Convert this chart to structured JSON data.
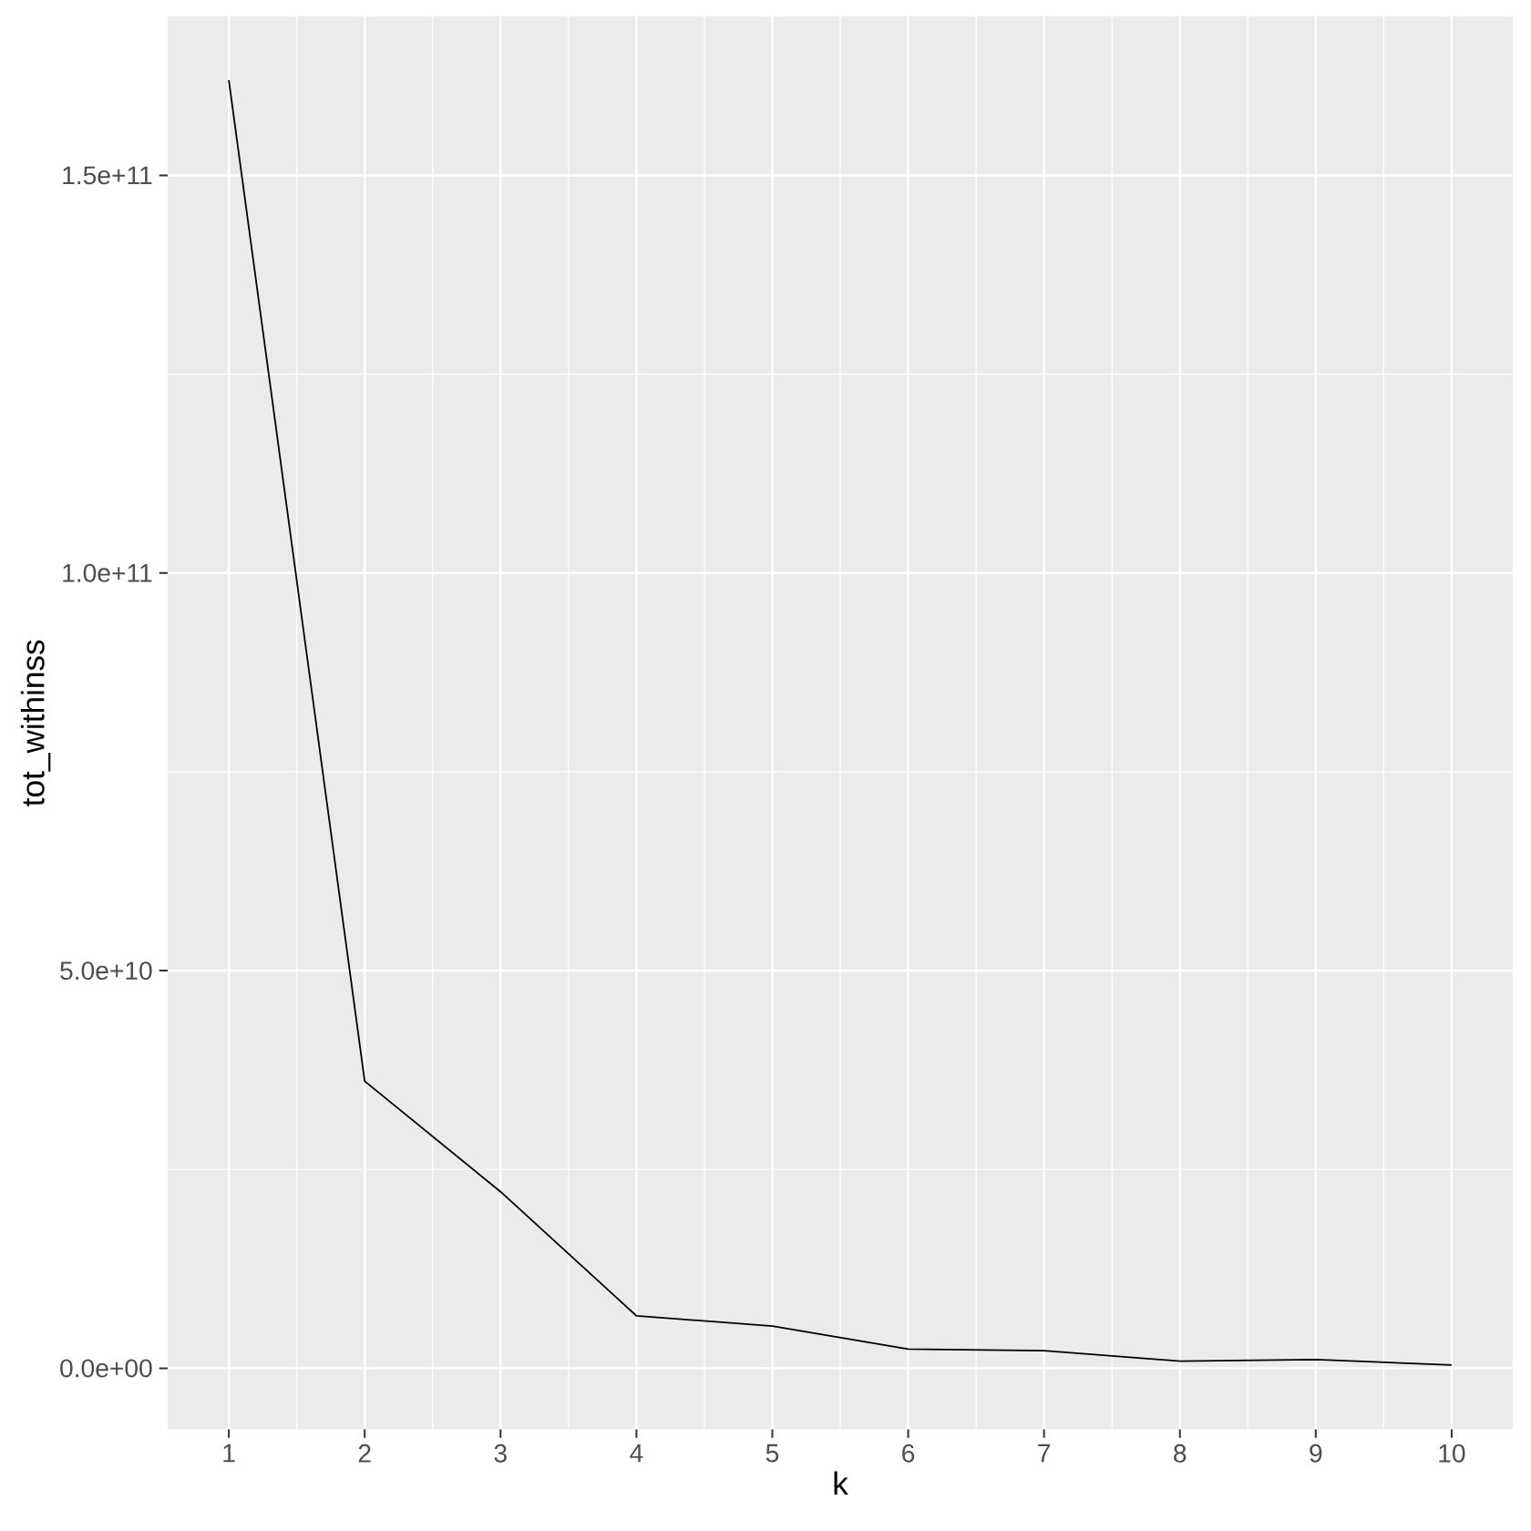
{
  "chart_data": {
    "type": "line",
    "xlabel": "k",
    "ylabel": "tot_withinss",
    "x": [
      1,
      2,
      3,
      4,
      5,
      6,
      7,
      8,
      9,
      10
    ],
    "series": [
      {
        "color": "#000000",
        "values": [
          162000000000.0,
          36100000000.0,
          22200000000.0,
          6600000000.0,
          5300000000.0,
          2400000000.0,
          2200000000.0,
          900000000.0,
          1100000000.0,
          400000000.0
        ]
      }
    ],
    "xlim": [
      0.55,
      10.45
    ],
    "ylim": [
      -7700000000.0,
      170000000000.0
    ],
    "xticks": [
      1,
      2,
      3,
      4,
      5,
      6,
      7,
      8,
      9,
      10
    ],
    "yticks": [
      {
        "value": 0,
        "label": "0.0e+00"
      },
      {
        "value": 50000000000.0,
        "label": "5.0e+10"
      },
      {
        "value": 100000000000.0,
        "label": "1.0e+11"
      },
      {
        "value": 150000000000.0,
        "label": "1.5e+11"
      }
    ],
    "grid": true
  }
}
